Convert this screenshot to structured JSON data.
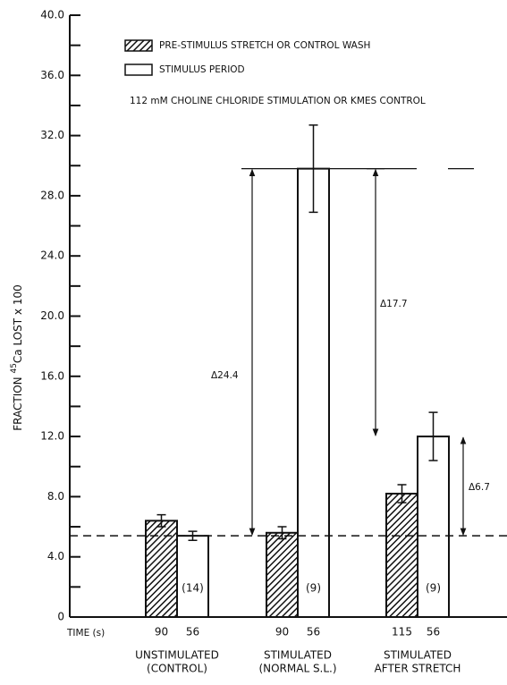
{
  "chart_data": {
    "type": "bar",
    "y_label": {
      "prefix": "FRACTION ",
      "sup": "45",
      "suffix": "Ca LOST x 100"
    },
    "x_label": "TIME (s)",
    "categories": [
      [
        "UNSTIMULATED",
        "(CONTROL)"
      ],
      [
        "STIMULATED",
        "(NORMAL S.L.)"
      ],
      [
        "STIMULATED",
        "AFTER STRETCH"
      ]
    ],
    "time_labels": [
      [
        "90",
        "56"
      ],
      [
        "90",
        "56"
      ],
      [
        "115",
        "56"
      ]
    ],
    "n_labels": [
      "(14)",
      "(9)",
      "(9)"
    ],
    "series": [
      {
        "name": "PRE-STIMULUS STRETCH OR CONTROL WASH",
        "color": "#111111",
        "hatch": true,
        "values": [
          6.4,
          5.6,
          8.2
        ],
        "errors": [
          0.4,
          0.4,
          0.6
        ]
      },
      {
        "name": "STIMULUS PERIOD",
        "color": "#ffffff",
        "hatch": false,
        "values": [
          5.4,
          29.8,
          12.0
        ],
        "errors": [
          0.3,
          2.9,
          1.6
        ]
      }
    ],
    "note": "112 mM CHOLINE CHLORIDE STIMULATION OR KMES CONTROL",
    "baseline": 5.4,
    "deltas": [
      {
        "label": "Δ24.4",
        "from": 5.4,
        "to": 29.8
      },
      {
        "label": "Δ17.7",
        "from": 12.0,
        "to": 29.8
      },
      {
        "label": "Δ6.7",
        "from": 5.4,
        "to": 12.0
      }
    ],
    "ylim": [
      0,
      40
    ],
    "yticks": [
      0,
      {
        "value": 4,
        "label": "4.0"
      },
      {
        "value": 8,
        "label": "8.0"
      },
      {
        "value": 12,
        "label": "12.0"
      },
      {
        "value": 16,
        "label": "16.0"
      },
      {
        "value": 20,
        "label": "20.0"
      },
      {
        "value": 24,
        "label": "24.0"
      },
      {
        "value": 28,
        "label": "28.0"
      },
      {
        "value": 32,
        "label": "32.0"
      },
      {
        "value": 36,
        "label": "36.0"
      },
      {
        "value": 40,
        "label": "40.0"
      }
    ]
  }
}
